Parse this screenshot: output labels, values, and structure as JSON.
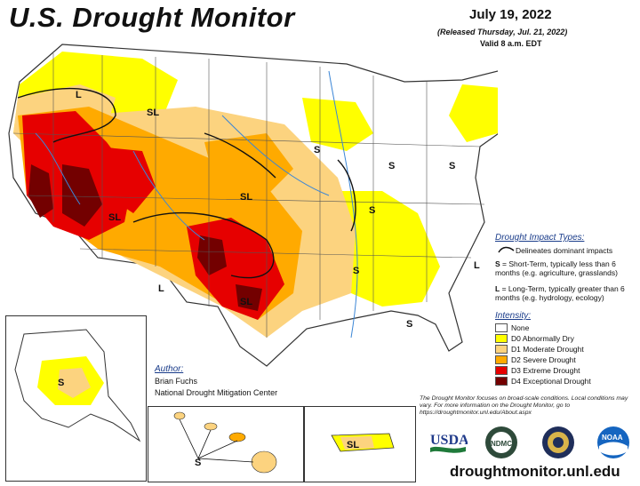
{
  "header": {
    "title": "U.S. Drought Monitor",
    "date": "July 19, 2022",
    "released": "(Released Thursday, Jul. 21, 2022)",
    "valid": "Valid 8 a.m. EDT"
  },
  "author": {
    "heading": "Author:",
    "name": "Brian Fuchs",
    "org": "National Drought Mitigation Center"
  },
  "impact_legend": {
    "heading": "Drought Impact Types:",
    "delineates": "Delineates dominant impacts",
    "short_term_key": "S",
    "short_term_text": "= Short-Term, typically less than 6 months (e.g. agriculture, grasslands)",
    "long_term_key": "L",
    "long_term_text": "= Long-Term, typically greater than 6 months (e.g. hydrology, ecology)"
  },
  "intensity_legend": {
    "heading": "Intensity:",
    "items": [
      {
        "label": "None",
        "color": "#ffffff"
      },
      {
        "label": "D0 Abnormally Dry",
        "color": "#ffff00"
      },
      {
        "label": "D1 Moderate Drought",
        "color": "#fcd37f"
      },
      {
        "label": "D2 Severe Drought",
        "color": "#ffaa00"
      },
      {
        "label": "D3 Extreme Drought",
        "color": "#e60000"
      },
      {
        "label": "D4 Exceptional Drought",
        "color": "#730000"
      }
    ]
  },
  "note": "The Drought Monitor focuses on broad-scale conditions. Local conditions may vary. For more information on the Drought Monitor, go to https://droughtmonitor.unl.edu/About.aspx",
  "url": "droughtmonitor.unl.edu",
  "logos": {
    "usda": "USDA",
    "ndmc": "NDMC",
    "noaa": "NOAA"
  },
  "map_labels": {
    "l": "L",
    "s": "S",
    "sl": "SL"
  }
}
